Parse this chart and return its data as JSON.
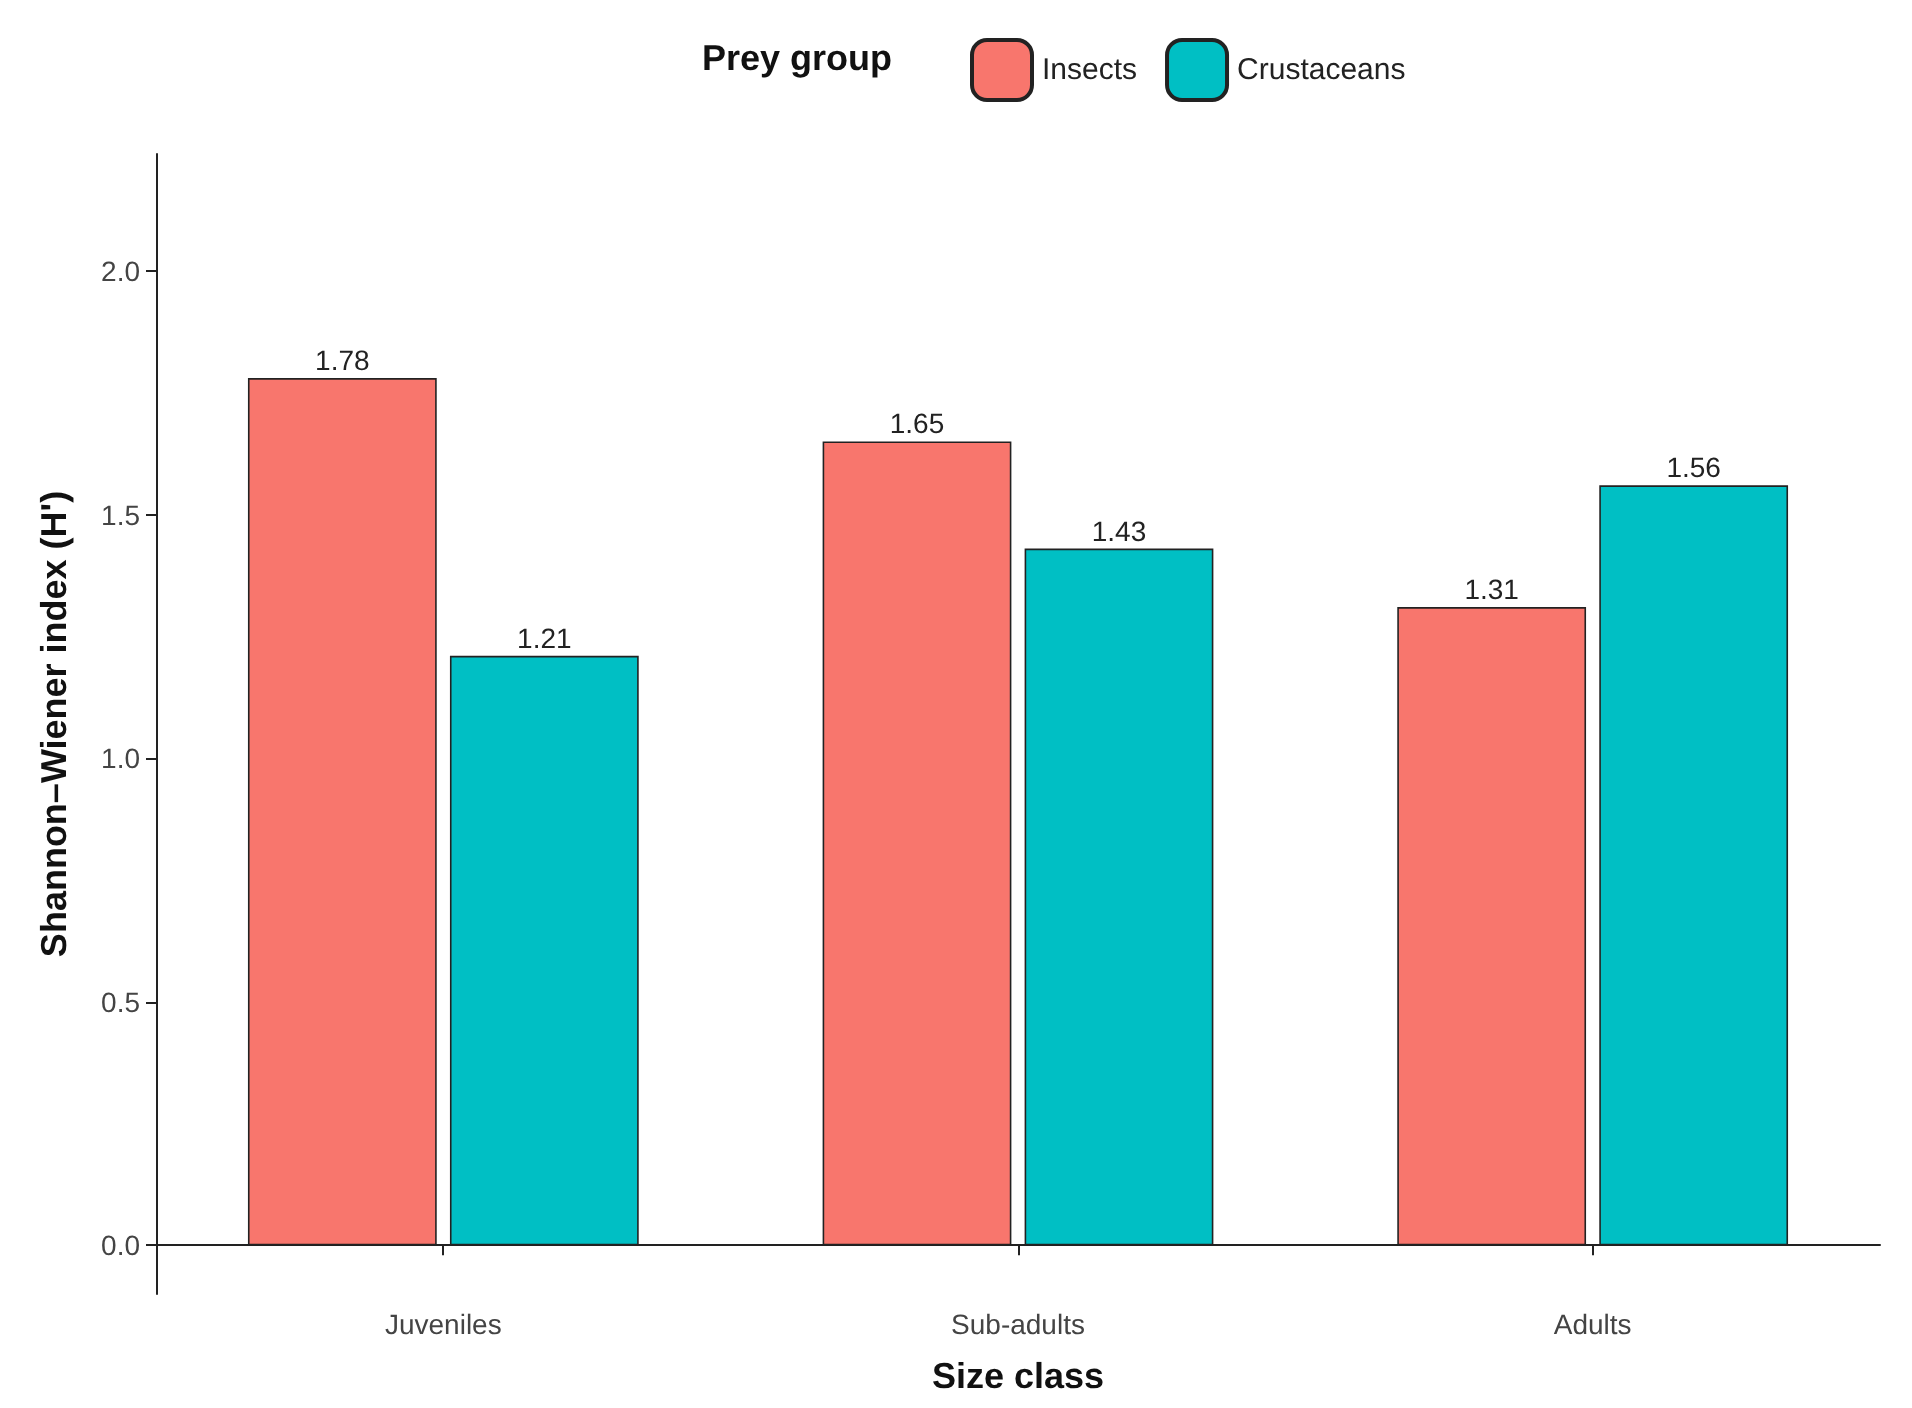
{
  "chart_data": {
    "type": "bar",
    "xlabel": "Size class",
    "ylabel": "Shannon–Wiener index (H')",
    "legend_title": "Prey group",
    "legend": "top",
    "categories": [
      "Juveniles",
      "Sub-adults",
      "Adults"
    ],
    "series": [
      {
        "name": "Insects",
        "color": "#f8766d",
        "values": [
          1.78,
          1.65,
          1.31
        ]
      },
      {
        "name": "Crustaceans",
        "color": "#00bfc4",
        "values": [
          1.21,
          1.43,
          1.56
        ]
      }
    ],
    "ylim": [
      -0.1,
      2.24
    ],
    "yticks": [
      {
        "value": 0,
        "label": "0.0"
      },
      {
        "value": 0.5,
        "label": "0.5"
      },
      {
        "value": 1,
        "label": "1.0"
      },
      {
        "value": 1.5,
        "label": "1.5"
      },
      {
        "value": 2,
        "label": "2.0"
      }
    ],
    "data_labels": true,
    "grid": false
  }
}
